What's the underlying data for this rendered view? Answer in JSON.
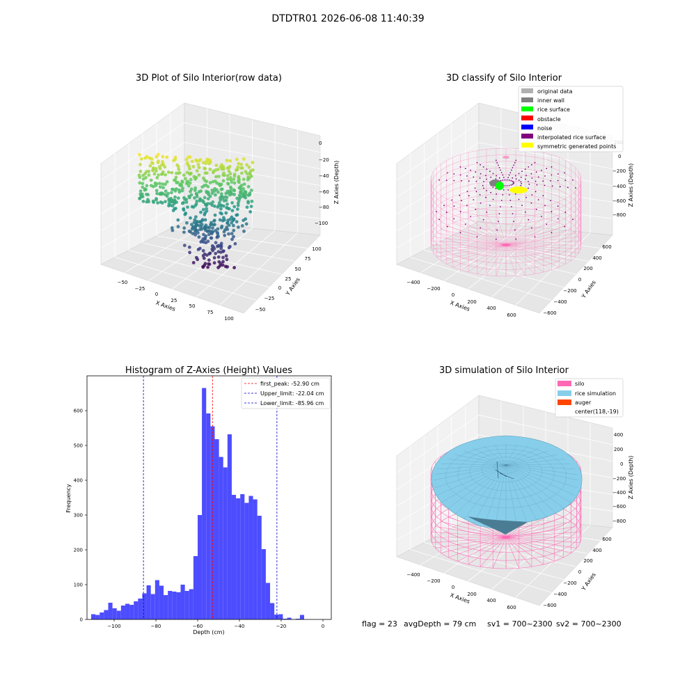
{
  "figure": {
    "suptitle": "DTDTR01 2026-06-08 11:40:39",
    "footer": {
      "flag": "flag = 23",
      "avg_depth": "avgDepth = 79 cm",
      "sv1": "sv1 = 700~2300",
      "sv2": "sv2 = 700~2300"
    }
  },
  "colors": {
    "original": "#b0b0b0",
    "inner_wall": "#808080",
    "rice_surface": "#00ff00",
    "obstacle": "#ff0000",
    "noise": "#0000ff",
    "interpolated": "#800080",
    "symmetric": "#ffff00",
    "silo": "#ff69b4",
    "rice_sim": "#87ceeb",
    "auger": "#ff4500",
    "hist_bar": "#4d4dff",
    "peak_line": "#ff0000",
    "limit_line": "#0000cc"
  },
  "chart_data": [
    {
      "type": "scatter",
      "title": "3D Plot of Silo Interior(row data)",
      "xlabel": "X Axies",
      "ylabel": "Y Axies",
      "zlabel": "Z Axies (Depth)",
      "x_ticks": [
        "−50",
        "−25",
        "0",
        "25",
        "50",
        "75",
        "100"
      ],
      "y_ticks": [
        "−50",
        "−25",
        "0",
        "25",
        "50",
        "75",
        "100"
      ],
      "z_ticks": [
        "0",
        "−20",
        "−40",
        "−60",
        "−80",
        "−100"
      ],
      "xlim": [
        -60,
        105
      ],
      "ylim": [
        -60,
        105
      ],
      "zlim": [
        -120,
        5
      ],
      "colormap": "viridis",
      "approx_points_shown": 600
    },
    {
      "type": "scatter",
      "title": "3D classify of Silo Interior",
      "xlabel": "X Axies",
      "ylabel": "Y Axies",
      "zlabel": "Z Axies (Depth)",
      "x_ticks": [
        "−400",
        "−200",
        "0",
        "200",
        "400",
        "600"
      ],
      "y_ticks": [
        "−600",
        "−400",
        "−200",
        "0",
        "200",
        "400",
        "600"
      ],
      "z_ticks": [
        "200",
        "0",
        "−200",
        "−400",
        "−600",
        "−800"
      ],
      "legend": [
        "original data",
        "inner wall",
        "rice surface",
        "obstacle",
        "noise",
        "interpolated rice surface",
        "symmetric generated points"
      ],
      "legend_position": "upper right"
    },
    {
      "type": "bar",
      "title": "Histogram of Z-Axies (Height) Values",
      "xlabel": "Depth (cm)",
      "ylabel": "Frequency",
      "xlim": [
        -113,
        4
      ],
      "ylim": [
        0,
        700
      ],
      "x_ticks": [
        -100,
        -80,
        -60,
        -40,
        -20,
        0
      ],
      "y_ticks": [
        0,
        100,
        200,
        300,
        400,
        500,
        600
      ],
      "bin_start": -111,
      "bin_width": 2.04,
      "values": [
        15,
        13,
        20,
        27,
        48,
        32,
        25,
        40,
        45,
        42,
        52,
        60,
        75,
        98,
        73,
        113,
        97,
        70,
        82,
        80,
        78,
        100,
        82,
        87,
        182,
        300,
        665,
        592,
        555,
        518,
        467,
        437,
        532,
        358,
        348,
        360,
        335,
        355,
        345,
        298,
        202,
        105,
        47,
        14,
        15,
        2,
        5,
        1,
        2,
        13
      ],
      "lines": [
        {
          "label": "first_peak: -52.90 cm",
          "x": -52.9,
          "style": "dashed",
          "color_key": "peak_line"
        },
        {
          "label": "Upper_limit: -22.04 cm",
          "x": -22.04,
          "style": "dashed",
          "color_key": "limit_line"
        },
        {
          "label": "Lower_limit: -85.96 cm",
          "x": -85.96,
          "style": "dashed",
          "color_key": "limit_line"
        }
      ],
      "legend_position": "upper right"
    },
    {
      "type": "surface",
      "title": "3D simulation of Silo Interior",
      "xlabel": "X Axies",
      "ylabel": "Y Axies",
      "zlabel": "Z Axies (Depth)",
      "x_ticks": [
        "−400",
        "−200",
        "0",
        "200",
        "400",
        "600"
      ],
      "y_ticks": [
        "−600",
        "−400",
        "−200",
        "0",
        "200",
        "400",
        "600"
      ],
      "z_ticks": [
        "400",
        "200",
        "0",
        "−200",
        "−400",
        "−600",
        "−800"
      ],
      "legend": [
        "silo",
        "rice simulation",
        "auger",
        "center(118,-19)"
      ],
      "legend_position": "upper right"
    }
  ]
}
